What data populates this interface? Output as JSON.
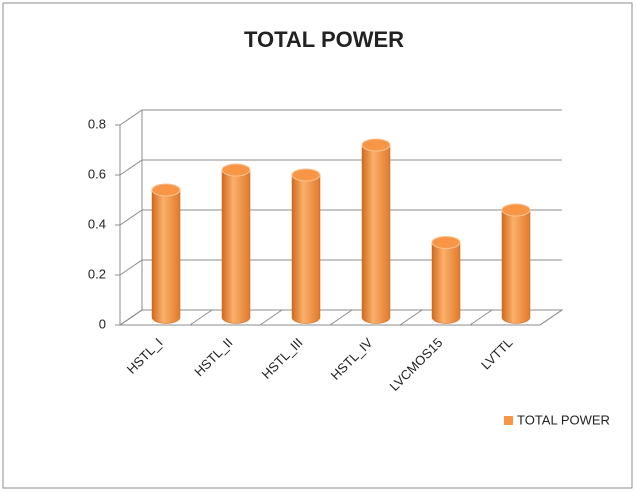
{
  "chart_data": {
    "type": "bar",
    "style": "3d-cylinder",
    "title": "TOTAL POWER",
    "categories": [
      "HSTL_I",
      "HSTL_II",
      "HSTL_III",
      "HSTL_IV",
      "LVCMOS15",
      "LVTTL"
    ],
    "series": [
      {
        "name": "TOTAL POWER",
        "color": "#f79646",
        "values": [
          0.51,
          0.59,
          0.57,
          0.69,
          0.3,
          0.43
        ]
      }
    ],
    "ylim": [
      0,
      0.8
    ],
    "yticks": [
      0,
      0.2,
      0.4,
      0.6,
      0.8
    ],
    "grid": true,
    "legend": "right"
  }
}
